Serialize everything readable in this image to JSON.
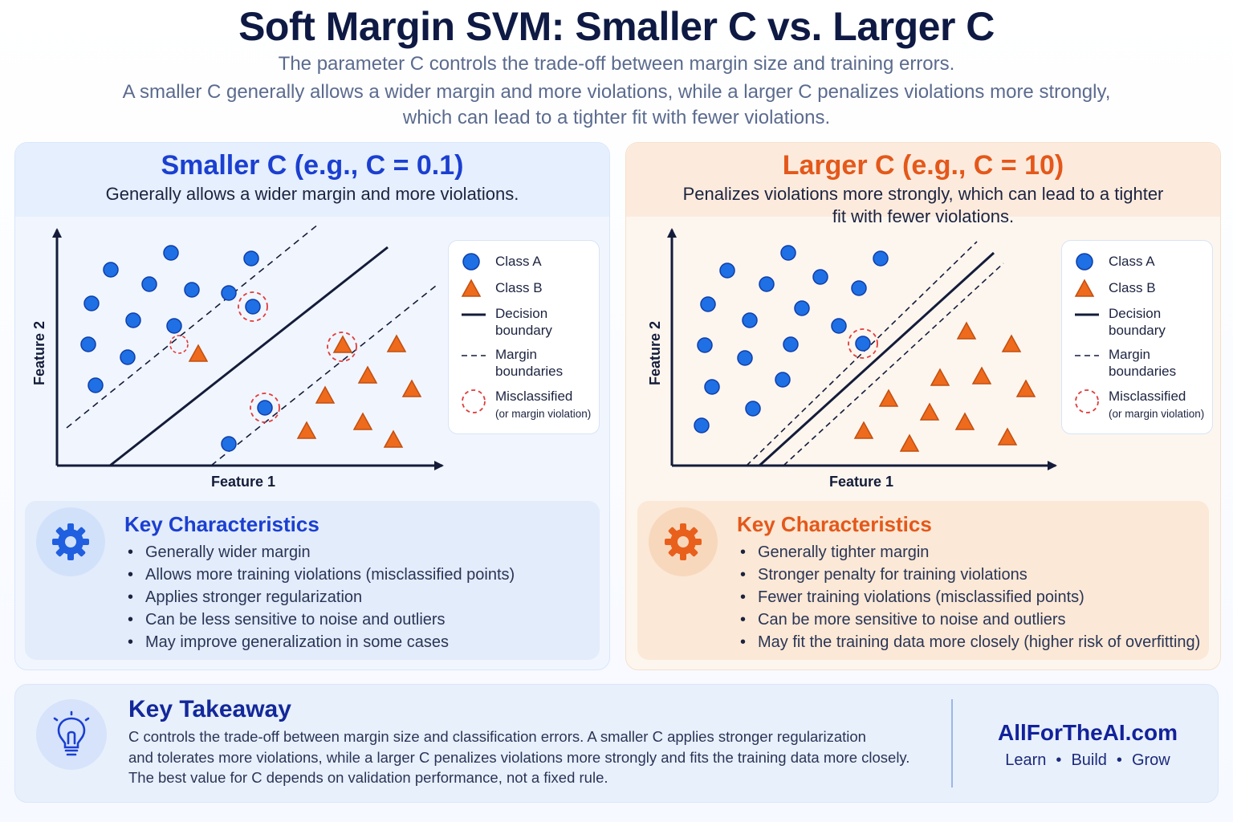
{
  "title": "Soft Margin SVM: Smaller C vs. Larger C",
  "subtitle_lines": [
    "The parameter C controls the trade-off between margin size and training errors.",
    "A smaller C generally allows a wider margin and more violations, while a larger C penalizes violations more strongly,",
    "which can lead to a tighter fit with fewer violations."
  ],
  "colors": {
    "class_a": "#1f6fe5",
    "class_b": "#ee6a1c",
    "misclassified": "#e23b3b",
    "blue_accent": "#1b3fd1",
    "orange_accent": "#e4581a"
  },
  "legend": {
    "class_a": "Class A",
    "class_b": "Class B",
    "decision_boundary": "Decision boundary",
    "margin_boundaries": "Margin boundaries",
    "misclassified": "Misclassified",
    "misclassified_note": "(or margin violation)"
  },
  "axes": {
    "xlabel": "Feature 1",
    "ylabel": "Feature 2"
  },
  "panels": {
    "small_c": {
      "title": "Smaller C (e.g., C = 0.1)",
      "description": "Generally allows a wider margin and more violations.",
      "key_title": "Key Characteristics",
      "key_icon": "gear-icon",
      "key_points": [
        "Generally wider margin",
        "Allows more training violations (misclassified points)",
        "Applies stronger regularization",
        "Can be less sensitive to noise and outliers",
        "May improve generalization in some cases"
      ]
    },
    "large_c": {
      "title": "Larger C (e.g., C = 10)",
      "description": "Penalizes violations more strongly, which can lead to a tighter fit with fewer violations.",
      "key_title": "Key Characteristics",
      "key_icon": "gear-icon",
      "key_points": [
        "Generally tighter margin",
        "Stronger penalty for training violations",
        "Fewer training violations (misclassified points)",
        "Can be more sensitive to noise and outliers",
        "May fit the training data more closely (higher risk of overfitting)"
      ]
    }
  },
  "takeaway": {
    "title": "Key Takeaway",
    "icon": "lightbulb-icon",
    "text_lines": [
      "C controls the trade-off between margin size and classification errors. A smaller C applies stronger regularization",
      "and tolerates more violations, while a larger C penalizes violations more strongly and fits the training data more closely.",
      "The best value for C depends on validation performance, not a fixed rule."
    ]
  },
  "brand": {
    "name": "AllForTheAI.com",
    "tagline": [
      "Learn",
      "Build",
      "Grow"
    ]
  }
}
